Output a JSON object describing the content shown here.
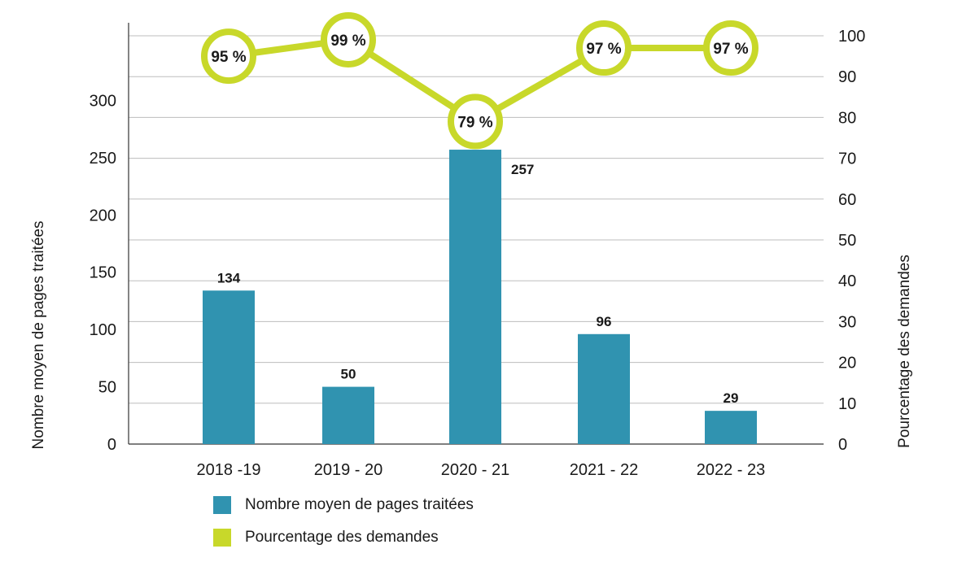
{
  "chart_data": {
    "type": "bar+line",
    "categories": [
      "2018 -19",
      "2019 - 20",
      "2020 - 21",
      "2021 - 22",
      "2022 - 23"
    ],
    "series": [
      {
        "name": "Nombre moyen de pages traitées",
        "type": "bar",
        "axis": "left",
        "color": "#3093b0",
        "values": [
          134,
          50,
          257,
          96,
          29
        ],
        "labels": [
          "134",
          "50",
          "257",
          "96",
          "29"
        ]
      },
      {
        "name": "Pourcentage des demandes",
        "type": "line",
        "axis": "right",
        "color": "#c8d82a",
        "values": [
          95,
          99,
          79,
          97,
          97
        ],
        "labels": [
          "95 %",
          "99 %",
          "79 %",
          "97 %",
          "97 %"
        ]
      }
    ],
    "y_left": {
      "label": "Nombre moyen de pages traitées",
      "ticks": [
        "0",
        "50",
        "100",
        "150",
        "200",
        "250",
        "300"
      ],
      "tick_values": [
        0,
        50,
        100,
        150,
        200,
        250,
        300
      ],
      "range": [
        0,
        355
      ]
    },
    "y_right": {
      "label": "Pourcentage des demandes",
      "ticks": [
        "0",
        "10",
        "20",
        "30",
        "40",
        "50",
        "60",
        "70",
        "80",
        "90",
        "100"
      ],
      "tick_values": [
        0,
        10,
        20,
        30,
        40,
        50,
        60,
        70,
        80,
        90,
        100
      ],
      "range": [
        0,
        100
      ]
    },
    "grid": true,
    "legend_position": "bottom-left"
  },
  "legend": {
    "items": [
      {
        "label": "Nombre moyen de pages traitées",
        "color": "#3093b0"
      },
      {
        "label": "Pourcentage des demandes",
        "color": "#c8d82a"
      }
    ]
  }
}
